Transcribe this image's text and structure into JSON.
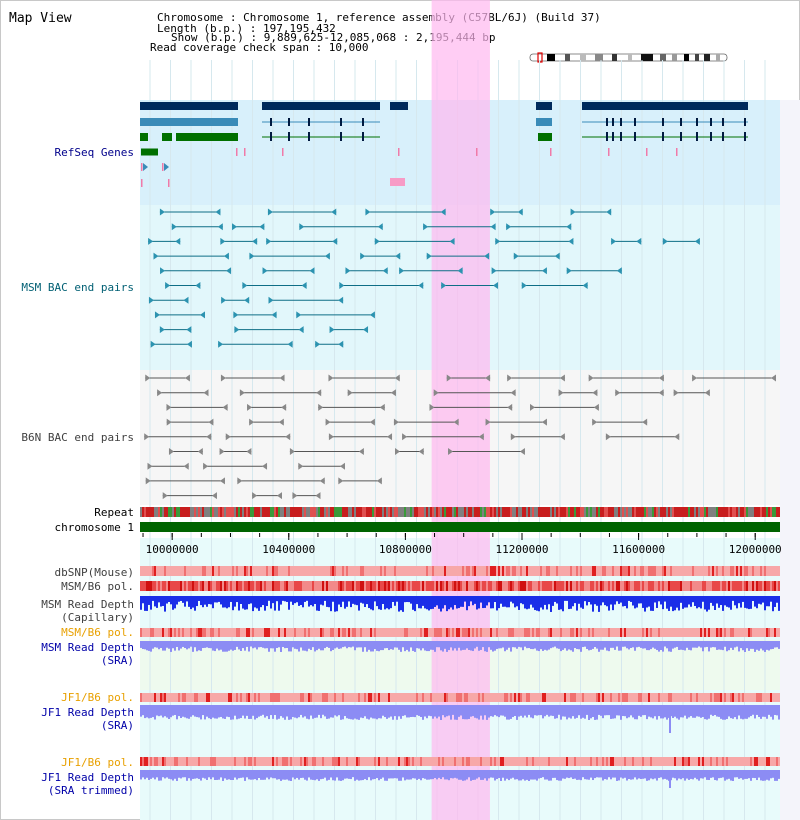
{
  "title": "Map View",
  "info": {
    "line1": "Chromosome     : Chromosome 1, reference assembly (C57BL/6J) (Build 37)",
    "line2": "Length (b.p.) : 197,195,432",
    "line3": "Show (b.p.) : 9,889,625-12,085,068 : 2,195,444 bp",
    "line4": "Read coverage check span : 10,000"
  },
  "tracks": {
    "refseq": "RefSeq Genes",
    "msm_bac": "MSM BAC end pairs",
    "b6n_bac": "B6N BAC end pairs",
    "repeat": "Repeat",
    "chromosome": "chromosome 1",
    "dbsnp": "dbSNP(Mouse)",
    "msm_b6_pol": "MSM/B6 pol.",
    "msm_depth_cap_1": "MSM Read Depth",
    "msm_depth_cap_2": "(Capillary)",
    "msm_b6_pol_sra": "MSM/B6 pol.",
    "msm_depth_sra_1": "MSM Read Depth",
    "msm_depth_sra_2": "(SRA)",
    "jf1_b6_pol": "JF1/B6 pol.",
    "jf1_depth_sra_1": "JF1 Read Depth",
    "jf1_depth_sra_2": "(SRA)",
    "jf1_b6_pol_trim": "JF1/B6 pol.",
    "jf1_depth_trim_1": "JF1 Read Depth",
    "jf1_depth_trim_2": "(SRA trimmed)"
  },
  "axis": {
    "ticks": [
      {
        "value": 10000000,
        "label": "10000000"
      },
      {
        "value": 10400000,
        "label": "10400000"
      },
      {
        "value": 10800000,
        "label": "10800000"
      },
      {
        "value": 11200000,
        "label": "11200000"
      },
      {
        "value": 11600000,
        "label": "11600000"
      },
      {
        "value": 12000000,
        "label": "12000000"
      }
    ],
    "start": 9889625,
    "end": 12085068
  },
  "highlight": {
    "start": 10890000,
    "end": 11090000
  },
  "colors": {
    "label_blue": "#00008b",
    "label_teal": "#005f73",
    "label_orange": "#e8a000",
    "gene_dark": "#002a5c",
    "gene_mid": "#3a8bb8",
    "gene_green": "#007000",
    "highlight": "#ffb8ef",
    "refseq_bg": "#d8f0fb",
    "msm_bg": "#e2f7fb",
    "b6n_bg": "#f6f6f6",
    "depth_blue": "#1a2ee8",
    "depth_light": "#8c8cf4"
  }
}
